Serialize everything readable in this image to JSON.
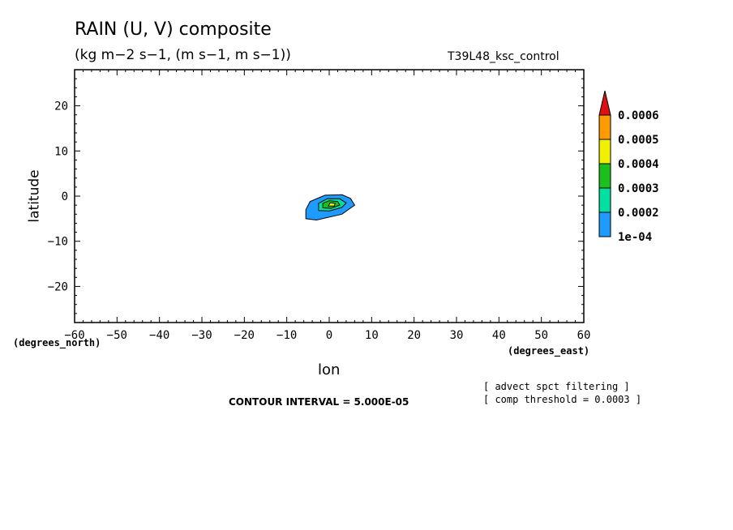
{
  "header": {
    "title": "RAIN (U, V) composite",
    "units": "(kg m−2 s−1, (m s−1, m s−1))",
    "run_name": "T39L48_ksc_control"
  },
  "axes": {
    "xlabel": "lon",
    "ylabel": "latitude",
    "x_units": "(degrees_east)",
    "y_units": "(degrees_north)"
  },
  "footer": {
    "contour_interval": "CONTOUR INTERVAL = 5.000E-05",
    "note_filtering": "[ advect spct filtering ]",
    "note_threshold": "[ comp threshold = 0.0003 ]"
  },
  "chart_data": {
    "type": "contour",
    "title": "RAIN (U, V) composite",
    "xlabel": "lon",
    "ylabel": "latitude",
    "xlim": [
      -60,
      60
    ],
    "ylim": [
      -28,
      28
    ],
    "xticks": [
      -60,
      -50,
      -40,
      -30,
      -20,
      -10,
      0,
      10,
      20,
      30,
      40,
      50,
      60
    ],
    "yticks": [
      -20,
      -10,
      0,
      10,
      20
    ],
    "tick_labels_x": [
      "−60",
      "−50",
      "−40",
      "−30",
      "−20",
      "−10",
      "0",
      "10",
      "20",
      "30",
      "40",
      "50",
      "60"
    ],
    "tick_labels_y": [
      "−20",
      "−10",
      "0",
      "10",
      "20"
    ],
    "contour_interval": 5e-05,
    "levels": [
      {
        "level": 0.0001,
        "color": "#1e9bff",
        "polygon": [
          [
            -5.5,
            -5
          ],
          [
            -3,
            -5.3
          ],
          [
            3,
            -4
          ],
          [
            6,
            -2
          ],
          [
            5,
            -0.5
          ],
          [
            3,
            0.3
          ],
          [
            -1,
            0.2
          ],
          [
            -4.5,
            -1.2
          ],
          [
            -5.5,
            -3
          ]
        ]
      },
      {
        "level": 0.0002,
        "color": "#00e0a0",
        "polygon": [
          [
            -2.5,
            -3.2
          ],
          [
            0,
            -3.3
          ],
          [
            3,
            -2.5
          ],
          [
            4,
            -1.5
          ],
          [
            2.5,
            -0.6
          ],
          [
            -0.5,
            -0.6
          ],
          [
            -2.5,
            -1.6
          ]
        ]
      },
      {
        "level": 0.0003,
        "color": "#1cc01c",
        "polygon": [
          [
            -1.5,
            -2.6
          ],
          [
            0.5,
            -2.7
          ],
          [
            2.5,
            -2
          ],
          [
            2,
            -1.2
          ],
          [
            0,
            -1
          ],
          [
            -1.5,
            -1.6
          ]
        ]
      },
      {
        "level": 0.0004,
        "color": "#f0f000",
        "polygon": [
          [
            -0.2,
            -2.2
          ],
          [
            1.2,
            -2.2
          ],
          [
            1.4,
            -1.6
          ],
          [
            0.2,
            -1.5
          ]
        ]
      }
    ],
    "colorbar": {
      "labels": [
        "1e-04",
        "0.0002",
        "0.0003",
        "0.0004",
        "0.0005",
        "0.0006"
      ],
      "colors": [
        "#1e9bff",
        "#00e0a0",
        "#1cc01c",
        "#f0f000",
        "#ff9a00",
        "#e01010"
      ]
    }
  }
}
